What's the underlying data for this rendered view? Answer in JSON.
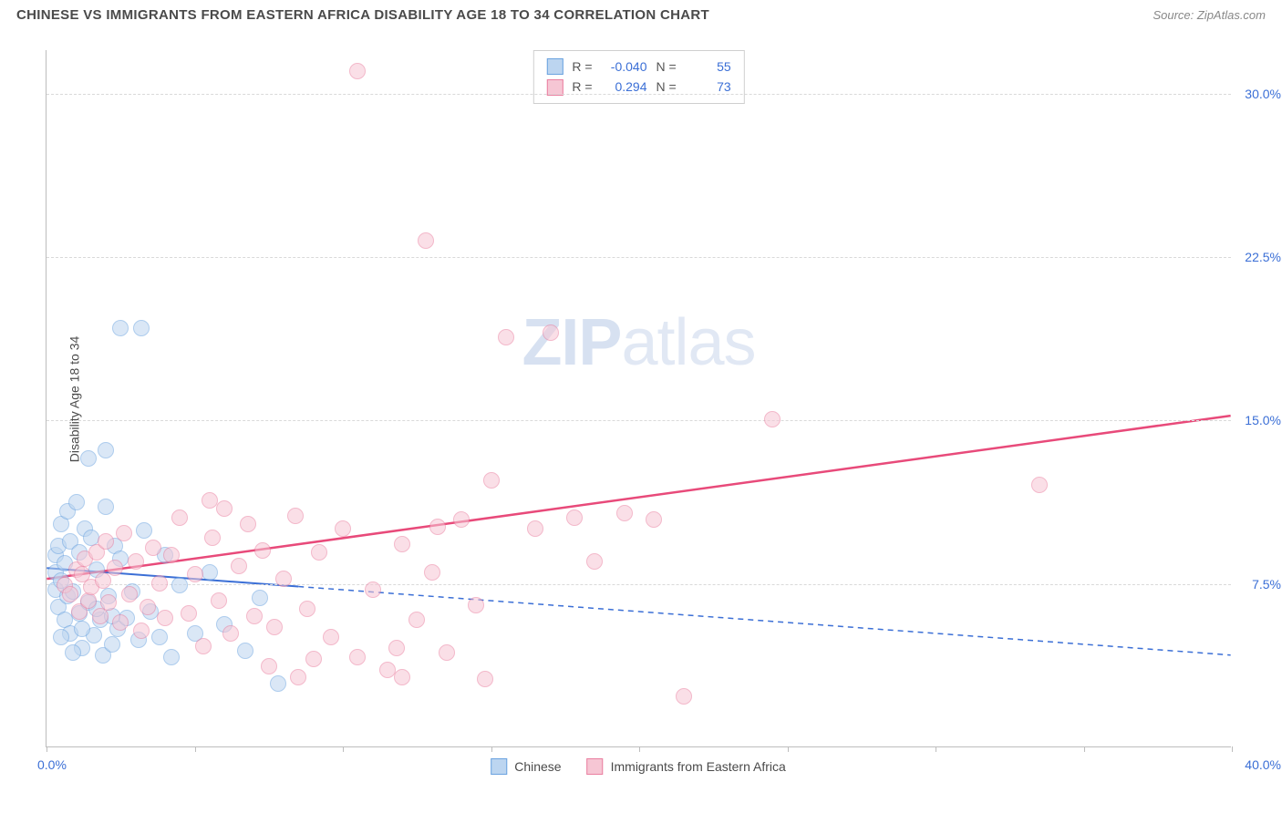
{
  "header": {
    "title": "CHINESE VS IMMIGRANTS FROM EASTERN AFRICA DISABILITY AGE 18 TO 34 CORRELATION CHART",
    "source_prefix": "Source: ",
    "source_name": "ZipAtlas.com"
  },
  "chart": {
    "type": "scatter",
    "y_axis_title": "Disability Age 18 to 34",
    "xlim": [
      0,
      40
    ],
    "ylim": [
      0,
      32
    ],
    "x_origin_label": "0.0%",
    "x_max_label": "40.0%",
    "y_ticks": [
      {
        "value": 7.5,
        "label": "7.5%"
      },
      {
        "value": 15.0,
        "label": "15.0%"
      },
      {
        "value": 22.5,
        "label": "22.5%"
      },
      {
        "value": 30.0,
        "label": "30.0%"
      }
    ],
    "x_tick_positions": [
      0,
      5,
      10,
      15,
      20,
      25,
      30,
      35,
      40
    ],
    "grid_color": "#d9d9d9",
    "axis_color": "#bdbdbd",
    "background_color": "#ffffff",
    "marker_radius": 9,
    "marker_stroke_width": 1.5,
    "series": [
      {
        "id": "chinese",
        "name": "Chinese",
        "fill": "#bcd5f0",
        "stroke": "#6ba3e0",
        "fill_opacity": 0.55,
        "R": "-0.040",
        "N": "55",
        "trend": {
          "x1": 0,
          "y1": 8.2,
          "x2": 40,
          "y2": 4.2,
          "solid_until_x": 8.5,
          "color": "#3b6fd6",
          "width": 2,
          "dash": "6,5"
        },
        "points": [
          [
            0.3,
            7.2
          ],
          [
            0.3,
            8.0
          ],
          [
            0.3,
            8.8
          ],
          [
            0.4,
            6.4
          ],
          [
            0.4,
            9.2
          ],
          [
            0.5,
            7.6
          ],
          [
            0.5,
            10.2
          ],
          [
            0.6,
            5.8
          ],
          [
            0.6,
            8.4
          ],
          [
            0.7,
            6.9
          ],
          [
            0.7,
            10.8
          ],
          [
            0.8,
            5.2
          ],
          [
            0.8,
            9.4
          ],
          [
            0.9,
            7.1
          ],
          [
            1.0,
            11.2
          ],
          [
            1.1,
            6.1
          ],
          [
            1.1,
            8.9
          ],
          [
            1.2,
            4.5
          ],
          [
            1.3,
            10.0
          ],
          [
            1.4,
            6.6
          ],
          [
            1.5,
            9.6
          ],
          [
            1.6,
            5.1
          ],
          [
            1.7,
            8.1
          ],
          [
            1.8,
            5.8
          ],
          [
            1.9,
            4.2
          ],
          [
            2.0,
            11.0
          ],
          [
            2.1,
            6.9
          ],
          [
            2.2,
            4.7
          ],
          [
            2.3,
            9.2
          ],
          [
            2.4,
            5.4
          ],
          [
            2.5,
            8.6
          ],
          [
            2.7,
            5.9
          ],
          [
            2.9,
            7.1
          ],
          [
            3.1,
            4.9
          ],
          [
            3.3,
            9.9
          ],
          [
            3.5,
            6.2
          ],
          [
            3.8,
            5.0
          ],
          [
            4.0,
            8.8
          ],
          [
            4.2,
            4.1
          ],
          [
            4.5,
            7.4
          ],
          [
            5.0,
            5.2
          ],
          [
            5.5,
            8.0
          ],
          [
            6.0,
            5.6
          ],
          [
            6.7,
            4.4
          ],
          [
            7.2,
            6.8
          ],
          [
            1.4,
            13.2
          ],
          [
            2.0,
            13.6
          ],
          [
            2.5,
            19.2
          ],
          [
            3.2,
            19.2
          ],
          [
            7.8,
            2.9
          ],
          [
            0.5,
            5.0
          ],
          [
            0.9,
            4.3
          ],
          [
            1.2,
            5.4
          ],
          [
            1.7,
            6.3
          ],
          [
            2.2,
            6.0
          ]
        ]
      },
      {
        "id": "eafrica",
        "name": "Immigrants from Eastern Africa",
        "fill": "#f6c6d4",
        "stroke": "#ea7fa0",
        "fill_opacity": 0.55,
        "R": "0.294",
        "N": "73",
        "trend": {
          "x1": 0,
          "y1": 7.7,
          "x2": 40,
          "y2": 15.2,
          "solid_until_x": 40,
          "color": "#e84a7a",
          "width": 2.5,
          "dash": ""
        },
        "points": [
          [
            0.6,
            7.4
          ],
          [
            0.8,
            7.0
          ],
          [
            1.0,
            8.1
          ],
          [
            1.1,
            6.2
          ],
          [
            1.2,
            7.9
          ],
          [
            1.3,
            8.6
          ],
          [
            1.4,
            6.7
          ],
          [
            1.5,
            7.3
          ],
          [
            1.7,
            8.9
          ],
          [
            1.8,
            6.0
          ],
          [
            1.9,
            7.6
          ],
          [
            2.0,
            9.4
          ],
          [
            2.1,
            6.6
          ],
          [
            2.3,
            8.2
          ],
          [
            2.5,
            5.7
          ],
          [
            2.6,
            9.8
          ],
          [
            2.8,
            7.0
          ],
          [
            3.0,
            8.5
          ],
          [
            3.2,
            5.3
          ],
          [
            3.4,
            6.4
          ],
          [
            3.6,
            9.1
          ],
          [
            3.8,
            7.5
          ],
          [
            4.0,
            5.9
          ],
          [
            4.2,
            8.8
          ],
          [
            4.5,
            10.5
          ],
          [
            4.8,
            6.1
          ],
          [
            5.0,
            7.9
          ],
          [
            5.3,
            4.6
          ],
          [
            5.6,
            9.6
          ],
          [
            5.8,
            6.7
          ],
          [
            6.0,
            10.9
          ],
          [
            6.2,
            5.2
          ],
          [
            6.5,
            8.3
          ],
          [
            6.8,
            10.2
          ],
          [
            7.0,
            6.0
          ],
          [
            7.3,
            9.0
          ],
          [
            7.7,
            5.5
          ],
          [
            8.0,
            7.7
          ],
          [
            8.4,
            10.6
          ],
          [
            8.8,
            6.3
          ],
          [
            9.2,
            8.9
          ],
          [
            9.6,
            5.0
          ],
          [
            10.0,
            10.0
          ],
          [
            10.5,
            4.1
          ],
          [
            11.0,
            7.2
          ],
          [
            11.5,
            3.5
          ],
          [
            12.0,
            9.3
          ],
          [
            12.5,
            5.8
          ],
          [
            13.0,
            8.0
          ],
          [
            13.5,
            4.3
          ],
          [
            14.0,
            10.4
          ],
          [
            14.5,
            6.5
          ],
          [
            10.5,
            31.0
          ],
          [
            12.8,
            23.2
          ],
          [
            15.5,
            18.8
          ],
          [
            17.0,
            19.0
          ],
          [
            18.5,
            8.5
          ],
          [
            19.5,
            10.7
          ],
          [
            20.5,
            10.4
          ],
          [
            21.5,
            2.3
          ],
          [
            24.5,
            15.0
          ],
          [
            33.5,
            12.0
          ],
          [
            15.0,
            12.2
          ],
          [
            12.0,
            3.2
          ],
          [
            9.0,
            4.0
          ],
          [
            8.5,
            3.2
          ],
          [
            7.5,
            3.7
          ],
          [
            13.2,
            10.1
          ],
          [
            16.5,
            10.0
          ],
          [
            17.8,
            10.5
          ],
          [
            11.8,
            4.5
          ],
          [
            14.8,
            3.1
          ],
          [
            5.5,
            11.3
          ]
        ]
      }
    ]
  },
  "stats_box": {
    "r_label": "R =",
    "n_label": "N ="
  },
  "legend": {
    "series1": "Chinese",
    "series2": "Immigrants from Eastern Africa"
  },
  "watermark": {
    "bold": "ZIP",
    "light": "atlas"
  }
}
